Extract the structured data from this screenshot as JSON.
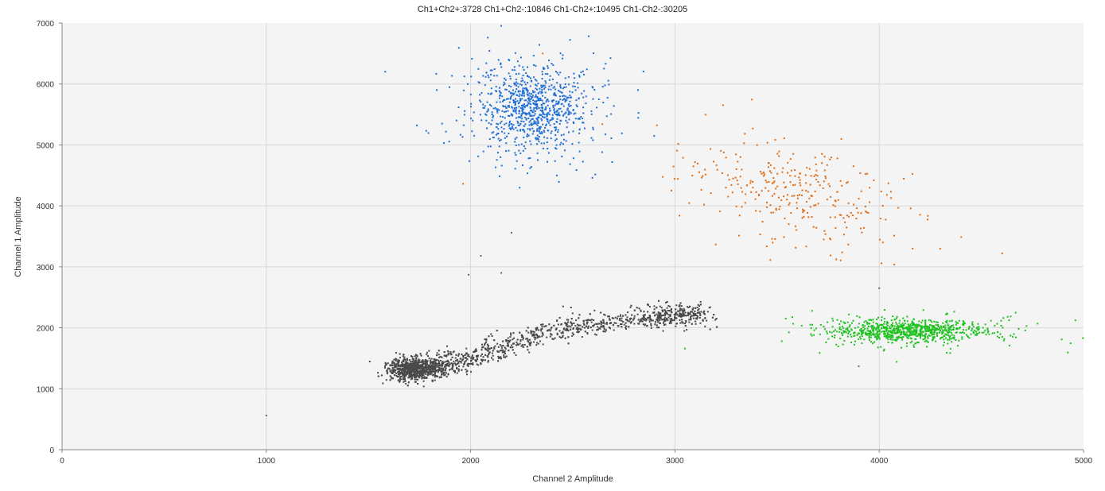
{
  "chart_data": {
    "type": "scatter",
    "title": "Ch1+Ch2+:3728  Ch1+Ch2-:10846  Ch1-Ch2+:10495  Ch1-Ch2-:30205",
    "xlabel": "Channel 2 Amplitude",
    "ylabel": "Channel 1 Amplitude",
    "xlim": [
      0,
      5000
    ],
    "ylim": [
      0,
      7000
    ],
    "xticks": [
      "0",
      "1000",
      "2000",
      "3000",
      "4000",
      "5000"
    ],
    "yticks": [
      "0",
      "1000",
      "2000",
      "3000",
      "4000",
      "5000",
      "6000",
      "7000"
    ],
    "grid": true,
    "legend": "none",
    "series": [
      {
        "cluster": "Ch1+Ch2+",
        "count": 3728,
        "color": "#e06c14",
        "center": [
          3550,
          4250
        ],
        "spread": [
          260,
          420
        ],
        "correlation": -0.45
      },
      {
        "cluster": "Ch1+Ch2-",
        "count": 10846,
        "color": "#1f6fd6",
        "center": [
          2300,
          5600
        ],
        "spread": [
          140,
          330
        ],
        "correlation": 0.0
      },
      {
        "cluster": "Ch1-Ch2+",
        "count": 10495,
        "color": "#1fc21f",
        "center": [
          4150,
          1950
        ],
        "spread": [
          180,
          95
        ],
        "correlation": 0.0
      },
      {
        "cluster": "Ch1-Ch2-",
        "count": 30205,
        "color": "#4a4a4a",
        "path": [
          [
            1600,
            1300
          ],
          [
            1800,
            1340
          ],
          [
            2000,
            1480
          ],
          [
            2200,
            1780
          ],
          [
            2500,
            2030
          ],
          [
            2800,
            2150
          ],
          [
            3000,
            2200
          ],
          [
            3150,
            2200
          ]
        ],
        "spread": [
          40,
          90
        ]
      }
    ],
    "outliers": [
      [
        1000,
        560
      ],
      [
        2050,
        3180
      ],
      [
        1990,
        2870
      ],
      [
        2150,
        2900
      ],
      [
        2200,
        3560
      ],
      [
        3900,
        1370
      ],
      [
        4000,
        2650
      ]
    ]
  }
}
